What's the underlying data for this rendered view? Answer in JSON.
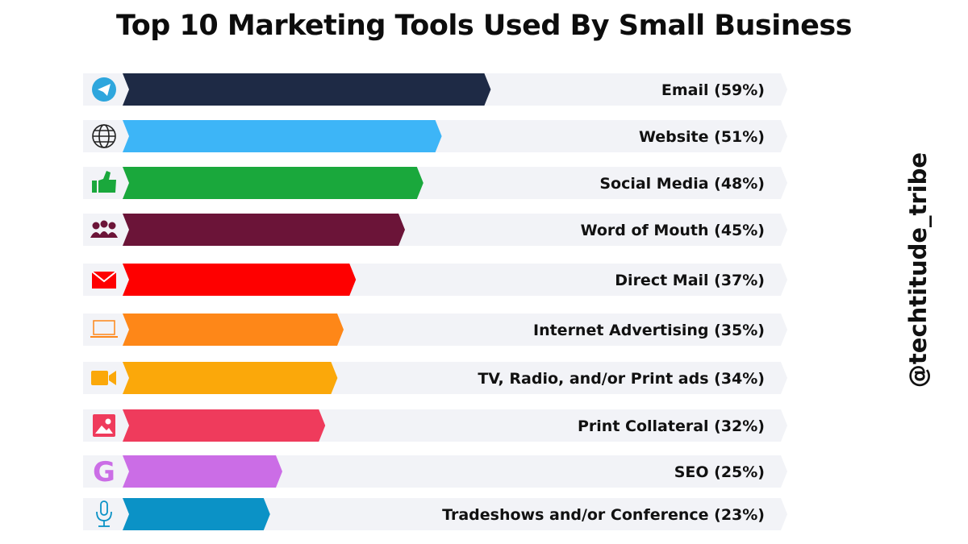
{
  "chart_data": {
    "type": "bar",
    "title": "Top 10 Marketing Tools Used By Small Business",
    "xlabel": "",
    "ylabel": "",
    "xlim": [
      0,
      100
    ],
    "grid": false,
    "legend": "none",
    "categories": [
      "Email",
      "Website",
      "Social Media",
      "Word of Mouth",
      "Direct Mail",
      "Internet Advertising",
      "TV, Radio, and/or Print ads",
      "Print Collateral",
      "SEO",
      "Tradeshows and/or Conference"
    ],
    "values": [
      59,
      51,
      48,
      45,
      37,
      35,
      34,
      32,
      25,
      23
    ],
    "labels": [
      "Email (59%)",
      "Website (51%)",
      "Social Media (48%)",
      "Word of Mouth (45%)",
      "Direct Mail (37%)",
      "Internet Advertising (35%)",
      "TV, Radio, and/or Print ads (34%)",
      "Print Collateral (32%)",
      "SEO (25%)",
      "Tradeshows and/or Conference (23%)"
    ],
    "colors": [
      "#1e2a45",
      "#3db5f7",
      "#1aa83c",
      "#6b1438",
      "#fe0000",
      "#fe8718",
      "#fba80a",
      "#ef3b5c",
      "#cb6de6",
      "#0b92c6"
    ],
    "icons": [
      "telegram-icon",
      "globe-icon",
      "thumbs-up-icon",
      "group-icon",
      "mail-icon",
      "laptop-icon",
      "video-camera-icon",
      "image-icon",
      "google-g-icon",
      "microphone-icon"
    ]
  },
  "watermark": "@techtitude_tribe",
  "colors": {
    "track": "#f2f3f7",
    "title": "#0d0d0d"
  }
}
